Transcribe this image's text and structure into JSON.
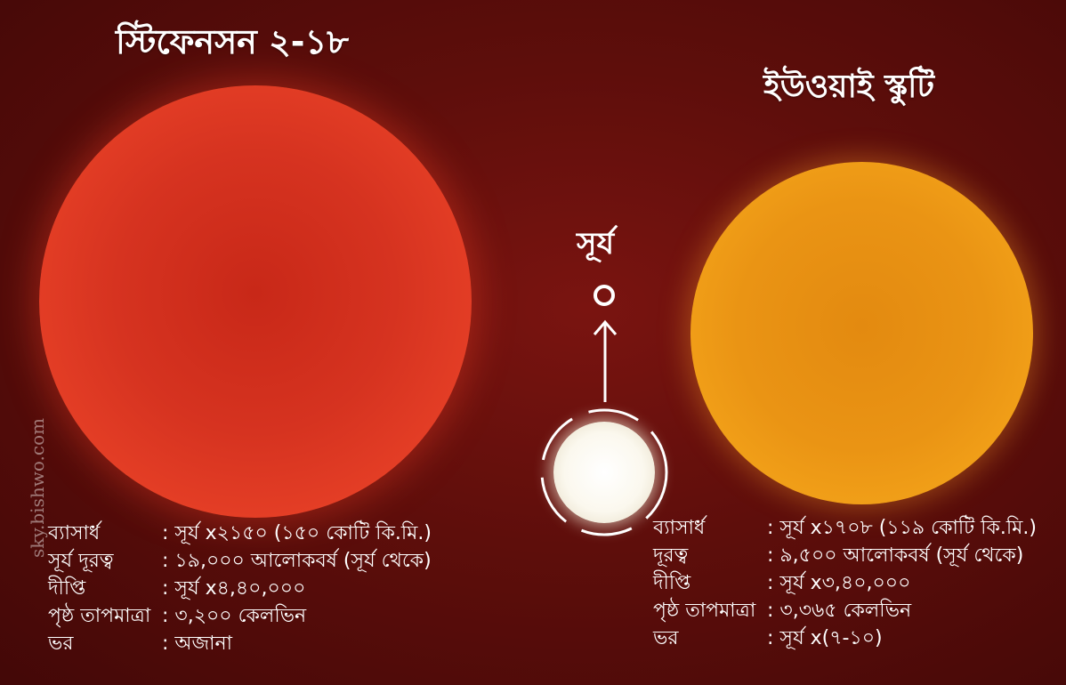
{
  "stars": {
    "left_title": "স্টিফেনসন ২-১৮",
    "right_title": "ইউওয়াই স্কুটি",
    "sun_label": "সূর্য"
  },
  "info_left": [
    {
      "key": "ব্যাসার্ধ",
      "value": ": সূর্য x২১৫০ (১৫০ কোটি কি.মি.)"
    },
    {
      "key": "সূর্য দূরত্ব",
      "value": ": ১৯,০০০ আলোকবর্ষ (সূর্য থেকে)"
    },
    {
      "key": "দীপ্তি",
      "value": ": সূর্য x৪,৪০,০০০"
    },
    {
      "key": "পৃষ্ঠ তাপমাত্রা",
      "value": ": ৩,২০০ কেলভিন"
    },
    {
      "key": "ভর",
      "value": ": অজানা"
    }
  ],
  "info_right": [
    {
      "key": "ব্যাসার্ধ",
      "value": ": সূর্য x১৭০৮ (১১৯ কোটি কি.মি.)"
    },
    {
      "key": "দূরত্ব",
      "value": ": ৯,৫০০ আলোকবর্ষ (সূর্য থেকে)"
    },
    {
      "key": "দীপ্তি",
      "value": ": সূর্য x৩,৪০,০০০"
    },
    {
      "key": "পৃষ্ঠ তাপমাত্রা",
      "value": ": ৩,৩৬৫ কেলভিন"
    },
    {
      "key": "ভর",
      "value": ": সূর্য x(৭-১০)"
    }
  ],
  "watermark": "sky.bishwo.com",
  "colors": {
    "background": "#5e0e0b",
    "left_star": "#e84127",
    "right_star": "#f5a51a",
    "sun": "#ffffff"
  }
}
